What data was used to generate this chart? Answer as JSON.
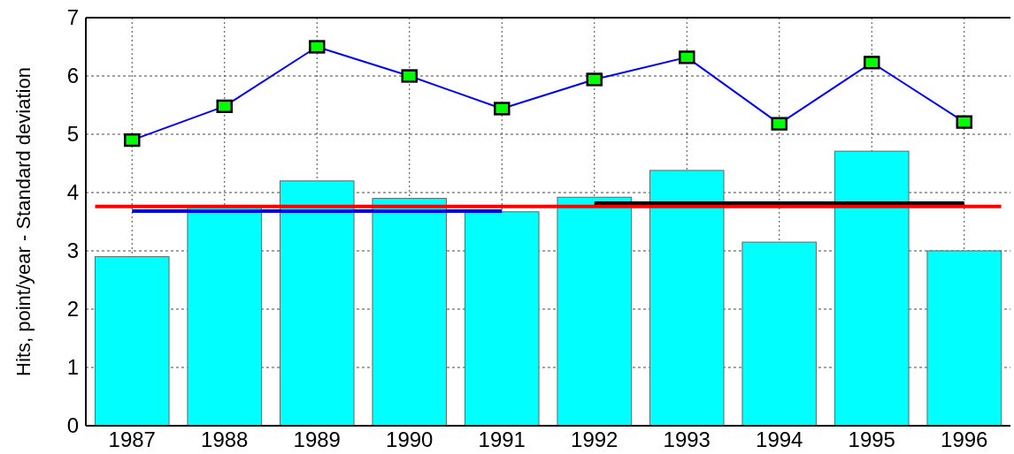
{
  "chart_data": {
    "type": "bar",
    "ylabel": "Hits, point/year - Standard deviation",
    "categories": [
      "1987",
      "1988",
      "1989",
      "1990",
      "1991",
      "1992",
      "1993",
      "1994",
      "1995",
      "1996"
    ],
    "series": [
      {
        "color": "#00ffff",
        "values": [
          2.9,
          3.77,
          4.2,
          3.9,
          3.67,
          3.92,
          4.38,
          3.15,
          4.71,
          3.0
        ]
      },
      {
        "type": "line",
        "color": "#0000ff",
        "marker": "square",
        "values": [
          4.9,
          5.48,
          6.5,
          6.0,
          5.44,
          5.94,
          6.32,
          5.18,
          6.23,
          5.21
        ]
      },
      {
        "type": "line",
        "color": "#0000ff",
        "marker": "none",
        "values": [
          3.68,
          3.68,
          3.68,
          3.68,
          3.68,
          null,
          null,
          null,
          null,
          null
        ]
      },
      {
        "type": "line",
        "color": "#000000",
        "marker": "none",
        "values": [
          null,
          null,
          null,
          null,
          null,
          3.82,
          3.82,
          3.82,
          3.82,
          3.82
        ]
      }
    ],
    "ref_lines": [
      {
        "axis": "y",
        "value": 3.76,
        "color": "#ff0000"
      }
    ],
    "ylim": [
      0,
      7
    ],
    "yticks": [
      0,
      1,
      2,
      3,
      4,
      5,
      6,
      7
    ],
    "grid": true
  }
}
